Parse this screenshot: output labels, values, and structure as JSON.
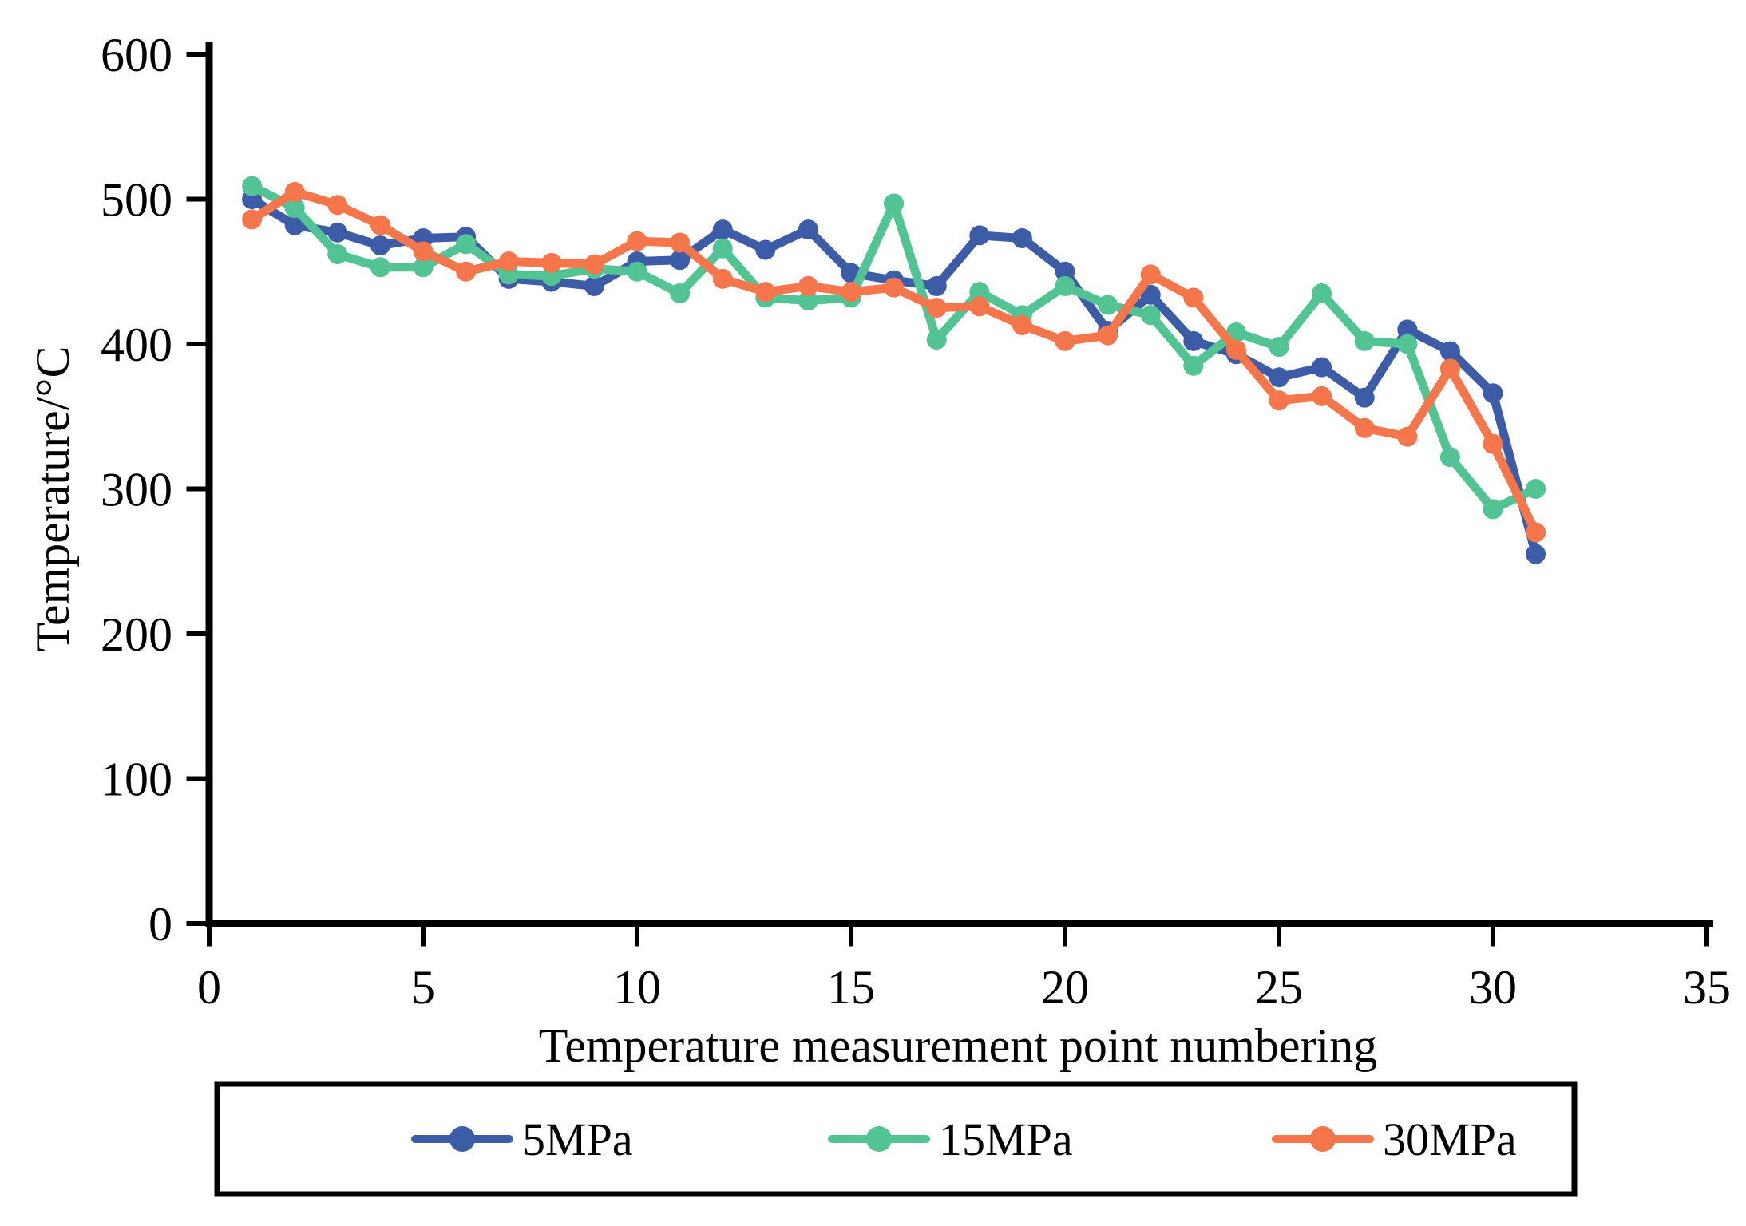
{
  "chart_data": {
    "type": "line",
    "title": "",
    "xlabel": "Temperature measurement point numbering",
    "ylabel": "Temperature/°C",
    "x": [
      1,
      2,
      3,
      4,
      5,
      6,
      7,
      8,
      9,
      10,
      11,
      12,
      13,
      14,
      15,
      16,
      17,
      18,
      19,
      20,
      21,
      22,
      23,
      24,
      25,
      26,
      27,
      28,
      29,
      30,
      31
    ],
    "series": [
      {
        "name": "5MPa",
        "color": "#3C5CA8",
        "values": [
          500,
          482,
          477,
          468,
          473,
          474,
          445,
          443,
          440,
          457,
          458,
          479,
          465,
          479,
          449,
          444,
          440,
          475,
          473,
          450,
          409,
          434,
          402,
          393,
          377,
          384,
          363,
          410,
          395,
          366,
          255
        ]
      },
      {
        "name": "15MPa",
        "color": "#52C493",
        "values": [
          509,
          494,
          462,
          453,
          453,
          469,
          448,
          447,
          452,
          450,
          435,
          466,
          432,
          430,
          432,
          497,
          403,
          436,
          420,
          440,
          427,
          420,
          385,
          408,
          398,
          435,
          402,
          400,
          322,
          286,
          300
        ]
      },
      {
        "name": "30MPa",
        "color": "#F5764B",
        "values": [
          486,
          505,
          496,
          482,
          464,
          450,
          457,
          456,
          455,
          471,
          470,
          445,
          436,
          440,
          436,
          439,
          425,
          426,
          413,
          402,
          406,
          448,
          432,
          396,
          361,
          364,
          342,
          336,
          383,
          331,
          270
        ]
      }
    ],
    "xlim": [
      0,
      35
    ],
    "ylim": [
      0,
      600
    ],
    "xticks": [
      0,
      5,
      10,
      15,
      20,
      25,
      30,
      35
    ],
    "yticks": [
      0,
      100,
      200,
      300,
      400,
      500,
      600
    ],
    "grid": false,
    "legend_position": "bottom-box",
    "axis_color": "#000000",
    "background_color": "#FFFFFF"
  }
}
